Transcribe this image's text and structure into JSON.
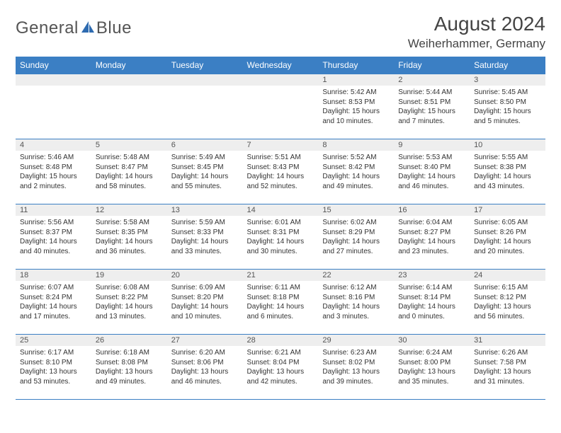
{
  "brand": {
    "part1": "General",
    "part2": "Blue"
  },
  "title": "August 2024",
  "location": "Weiherhammer, Germany",
  "colors": {
    "header_bg": "#3b7fc4",
    "header_text": "#ffffff",
    "daynum_bg": "#eeeeee",
    "border": "#3b7fc4",
    "text": "#333333",
    "title_text": "#444444"
  },
  "day_headers": [
    "Sunday",
    "Monday",
    "Tuesday",
    "Wednesday",
    "Thursday",
    "Friday",
    "Saturday"
  ],
  "weeks": [
    [
      {
        "n": "",
        "sr": "",
        "ss": "",
        "dl": ""
      },
      {
        "n": "",
        "sr": "",
        "ss": "",
        "dl": ""
      },
      {
        "n": "",
        "sr": "",
        "ss": "",
        "dl": ""
      },
      {
        "n": "",
        "sr": "",
        "ss": "",
        "dl": ""
      },
      {
        "n": "1",
        "sr": "5:42 AM",
        "ss": "8:53 PM",
        "dl": "15 hours and 10 minutes."
      },
      {
        "n": "2",
        "sr": "5:44 AM",
        "ss": "8:51 PM",
        "dl": "15 hours and 7 minutes."
      },
      {
        "n": "3",
        "sr": "5:45 AM",
        "ss": "8:50 PM",
        "dl": "15 hours and 5 minutes."
      }
    ],
    [
      {
        "n": "4",
        "sr": "5:46 AM",
        "ss": "8:48 PM",
        "dl": "15 hours and 2 minutes."
      },
      {
        "n": "5",
        "sr": "5:48 AM",
        "ss": "8:47 PM",
        "dl": "14 hours and 58 minutes."
      },
      {
        "n": "6",
        "sr": "5:49 AM",
        "ss": "8:45 PM",
        "dl": "14 hours and 55 minutes."
      },
      {
        "n": "7",
        "sr": "5:51 AM",
        "ss": "8:43 PM",
        "dl": "14 hours and 52 minutes."
      },
      {
        "n": "8",
        "sr": "5:52 AM",
        "ss": "8:42 PM",
        "dl": "14 hours and 49 minutes."
      },
      {
        "n": "9",
        "sr": "5:53 AM",
        "ss": "8:40 PM",
        "dl": "14 hours and 46 minutes."
      },
      {
        "n": "10",
        "sr": "5:55 AM",
        "ss": "8:38 PM",
        "dl": "14 hours and 43 minutes."
      }
    ],
    [
      {
        "n": "11",
        "sr": "5:56 AM",
        "ss": "8:37 PM",
        "dl": "14 hours and 40 minutes."
      },
      {
        "n": "12",
        "sr": "5:58 AM",
        "ss": "8:35 PM",
        "dl": "14 hours and 36 minutes."
      },
      {
        "n": "13",
        "sr": "5:59 AM",
        "ss": "8:33 PM",
        "dl": "14 hours and 33 minutes."
      },
      {
        "n": "14",
        "sr": "6:01 AM",
        "ss": "8:31 PM",
        "dl": "14 hours and 30 minutes."
      },
      {
        "n": "15",
        "sr": "6:02 AM",
        "ss": "8:29 PM",
        "dl": "14 hours and 27 minutes."
      },
      {
        "n": "16",
        "sr": "6:04 AM",
        "ss": "8:27 PM",
        "dl": "14 hours and 23 minutes."
      },
      {
        "n": "17",
        "sr": "6:05 AM",
        "ss": "8:26 PM",
        "dl": "14 hours and 20 minutes."
      }
    ],
    [
      {
        "n": "18",
        "sr": "6:07 AM",
        "ss": "8:24 PM",
        "dl": "14 hours and 17 minutes."
      },
      {
        "n": "19",
        "sr": "6:08 AM",
        "ss": "8:22 PM",
        "dl": "14 hours and 13 minutes."
      },
      {
        "n": "20",
        "sr": "6:09 AM",
        "ss": "8:20 PM",
        "dl": "14 hours and 10 minutes."
      },
      {
        "n": "21",
        "sr": "6:11 AM",
        "ss": "8:18 PM",
        "dl": "14 hours and 6 minutes."
      },
      {
        "n": "22",
        "sr": "6:12 AM",
        "ss": "8:16 PM",
        "dl": "14 hours and 3 minutes."
      },
      {
        "n": "23",
        "sr": "6:14 AM",
        "ss": "8:14 PM",
        "dl": "14 hours and 0 minutes."
      },
      {
        "n": "24",
        "sr": "6:15 AM",
        "ss": "8:12 PM",
        "dl": "13 hours and 56 minutes."
      }
    ],
    [
      {
        "n": "25",
        "sr": "6:17 AM",
        "ss": "8:10 PM",
        "dl": "13 hours and 53 minutes."
      },
      {
        "n": "26",
        "sr": "6:18 AM",
        "ss": "8:08 PM",
        "dl": "13 hours and 49 minutes."
      },
      {
        "n": "27",
        "sr": "6:20 AM",
        "ss": "8:06 PM",
        "dl": "13 hours and 46 minutes."
      },
      {
        "n": "28",
        "sr": "6:21 AM",
        "ss": "8:04 PM",
        "dl": "13 hours and 42 minutes."
      },
      {
        "n": "29",
        "sr": "6:23 AM",
        "ss": "8:02 PM",
        "dl": "13 hours and 39 minutes."
      },
      {
        "n": "30",
        "sr": "6:24 AM",
        "ss": "8:00 PM",
        "dl": "13 hours and 35 minutes."
      },
      {
        "n": "31",
        "sr": "6:26 AM",
        "ss": "7:58 PM",
        "dl": "13 hours and 31 minutes."
      }
    ]
  ],
  "labels": {
    "sunrise": "Sunrise:",
    "sunset": "Sunset:",
    "daylight": "Daylight:"
  }
}
